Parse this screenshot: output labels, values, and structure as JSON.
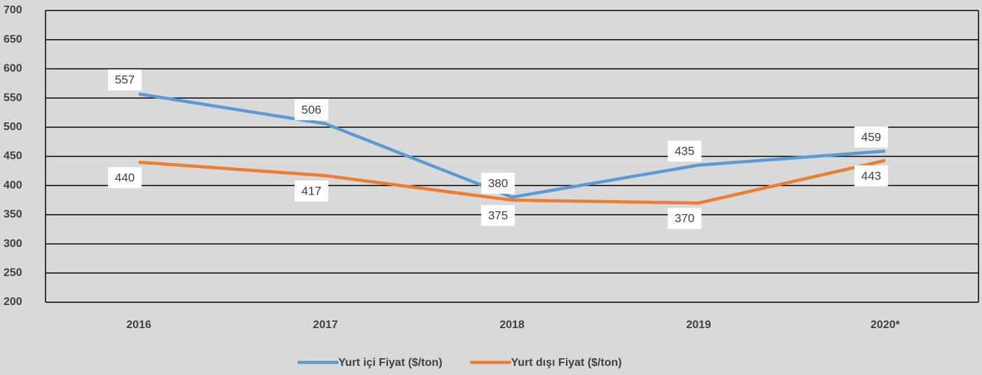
{
  "chart_data": {
    "type": "line",
    "categories": [
      "2016",
      "2017",
      "2018",
      "2019",
      "2020*"
    ],
    "series": [
      {
        "name": "Yurt içi Fiyat ($/ton)",
        "color": "#5b9bd5",
        "values": [
          557,
          506,
          380,
          435,
          459
        ]
      },
      {
        "name": "Yurt dışı Fiyat ($/ton)",
        "color": "#ed7d31",
        "values": [
          440,
          417,
          375,
          370,
          443
        ]
      }
    ],
    "ylim": [
      200,
      700
    ],
    "yticks": [
      200,
      250,
      300,
      350,
      400,
      450,
      500,
      550,
      600,
      650,
      700
    ],
    "grid": true
  }
}
